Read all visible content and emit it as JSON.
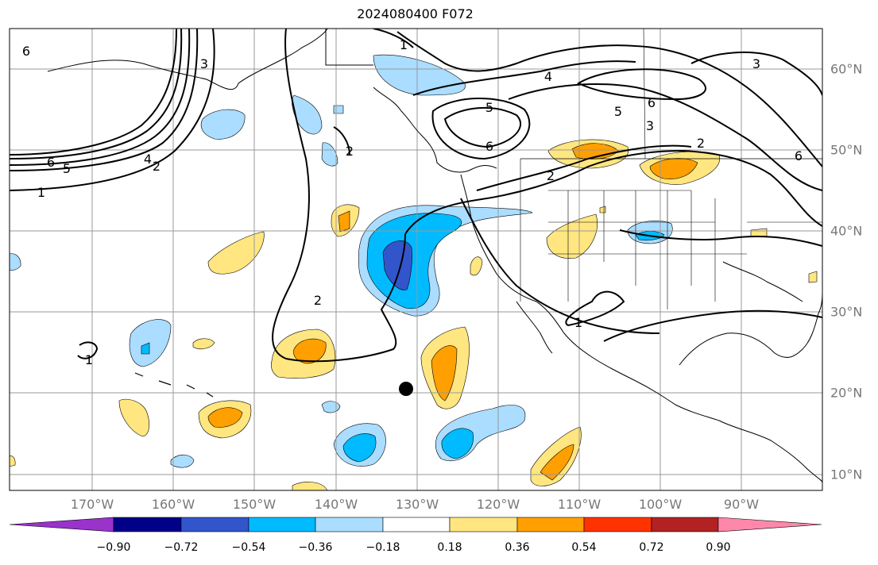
{
  "title": "2024080400 F072",
  "lon_labels": [
    "170°W",
    "160°W",
    "150°W",
    "140°W",
    "130°W",
    "120°W",
    "110°W",
    "100°W",
    "90°W"
  ],
  "lat_labels": [
    "60°N",
    "50°N",
    "40°N",
    "30°N",
    "20°N",
    "10°N"
  ],
  "colorbar": {
    "tick_labels": [
      "−0.90",
      "−0.72",
      "−0.54",
      "−0.36",
      "−0.18",
      "0.18",
      "0.36",
      "0.54",
      "0.72",
      "0.90"
    ],
    "colors": [
      "#9933cc",
      "#000088",
      "#3355cc",
      "#00bbff",
      "#aaddff",
      "#ffffff",
      "#ffe680",
      "#ffa000",
      "#ff3300",
      "#b22222",
      "#ff88aa"
    ]
  },
  "contour_labels": [
    {
      "text": "1"
    },
    {
      "text": "2"
    },
    {
      "text": "3"
    },
    {
      "text": "4"
    },
    {
      "text": "5"
    },
    {
      "text": "6"
    }
  ],
  "marker": {
    "name": "point-marker"
  }
}
